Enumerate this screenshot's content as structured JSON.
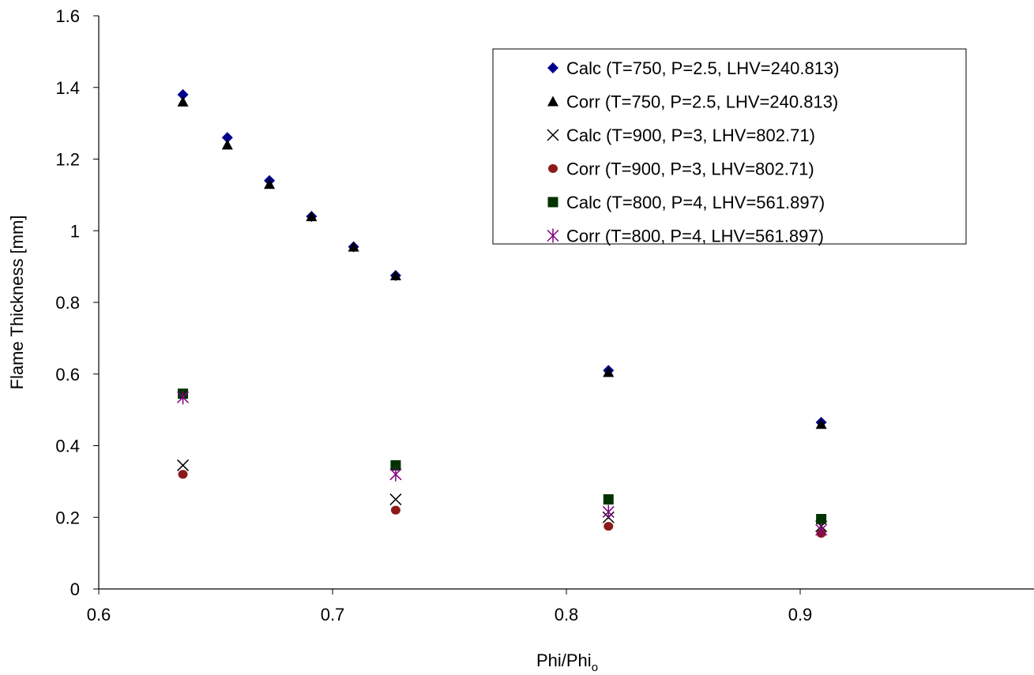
{
  "chart_data": {
    "type": "scatter",
    "title": "",
    "xlabel": "Phi/Phi",
    "xlabel_sub": "o",
    "ylabel": "Flame Thickness [mm]",
    "xlim": [
      0.6,
      1.0
    ],
    "ylim": [
      0,
      1.6
    ],
    "x_ticks": [
      0.6,
      0.7,
      0.8,
      0.9
    ],
    "x_tick_labels": [
      "0.6",
      "0.7",
      "0.8",
      "0.9"
    ],
    "y_ticks": [
      0,
      0.2,
      0.4,
      0.6,
      0.8,
      1,
      1.2,
      1.4,
      1.6
    ],
    "y_tick_labels": [
      "0",
      "0.2",
      "0.4",
      "0.6",
      "0.8",
      "1",
      "1.2",
      "1.4",
      "1.6"
    ],
    "grid": false,
    "legend_position": "top-right",
    "series": [
      {
        "name": "Calc (T=750, P=2.5, LHV=240.813)",
        "marker": "diamond",
        "color": "#00008B",
        "x": [
          0.636,
          0.655,
          0.673,
          0.691,
          0.709,
          0.727,
          0.818,
          0.909
        ],
        "y": [
          1.38,
          1.26,
          1.14,
          1.04,
          0.955,
          0.875,
          0.61,
          0.465
        ]
      },
      {
        "name": "Corr (T=750, P=2.5, LHV=240.813)",
        "marker": "triangle",
        "color": "#000000",
        "x": [
          0.636,
          0.655,
          0.673,
          0.691,
          0.709,
          0.727,
          0.818,
          0.909
        ],
        "y": [
          1.36,
          1.24,
          1.13,
          1.04,
          0.955,
          0.875,
          0.605,
          0.46
        ]
      },
      {
        "name": "Calc (T=900, P=3, LHV=802.71)",
        "marker": "x",
        "color": "#000000",
        "x": [
          0.636,
          0.727,
          0.818,
          0.909
        ],
        "y": [
          0.345,
          0.25,
          0.2,
          0.175
        ]
      },
      {
        "name": "Corr (T=900, P=3, LHV=802.71)",
        "marker": "circle",
        "color": "#8B1A1A",
        "x": [
          0.636,
          0.727,
          0.818,
          0.909
        ],
        "y": [
          0.32,
          0.22,
          0.175,
          0.155
        ]
      },
      {
        "name": "Calc (T=800, P=4, LHV=561.897)",
        "marker": "square",
        "color": "#003300",
        "x": [
          0.636,
          0.727,
          0.818,
          0.909
        ],
        "y": [
          0.545,
          0.345,
          0.25,
          0.195
        ]
      },
      {
        "name": "Corr (T=800, P=4, LHV=561.897)",
        "marker": "star",
        "color": "#800080",
        "x": [
          0.636,
          0.727,
          0.818,
          0.909
        ],
        "y": [
          0.535,
          0.32,
          0.215,
          0.165
        ]
      }
    ]
  }
}
